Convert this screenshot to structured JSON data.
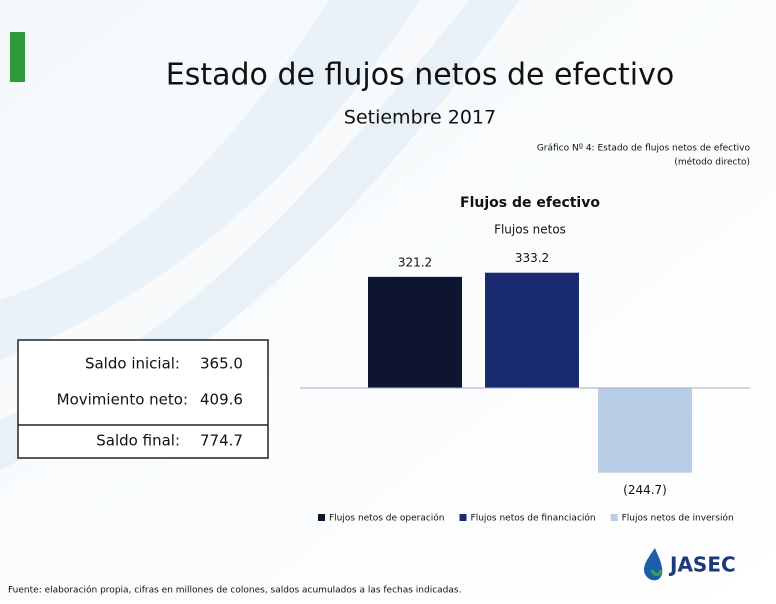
{
  "header": {
    "title": "Estado de flujos netos de efectivo",
    "subtitle": "Setiembre 2017",
    "caption": [
      "Gráfico Nº 4: Estado de flujos netos de efectivo",
      "(método directo)"
    ]
  },
  "chart_data": {
    "type": "bar",
    "title": "Flujos de efectivo",
    "subtitle": "Flujos netos",
    "series": [
      {
        "name": "Flujos netos de operación",
        "color": "#0d1530",
        "values": [
          321.2
        ]
      },
      {
        "name": "Flujos netos de financiación",
        "color": "#1a2a6e",
        "values": [
          333.2
        ]
      },
      {
        "name": "Flujos netos de inversión",
        "color": "#b8cde6",
        "values": [
          -244.7
        ],
        "value_labels": [
          "(244.7)"
        ]
      }
    ],
    "ylim": [
      -300,
      400
    ],
    "legend": "bottom"
  },
  "table": {
    "rows": [
      [
        "Saldo inicial:",
        "365.0"
      ],
      [
        "Movimiento neto:",
        "409.6"
      ],
      [
        "Saldo final:",
        "774.7"
      ]
    ]
  },
  "footer": {
    "source": "Fuente: elaboración propia, cifras en millones de colones, saldos acumulados a las fechas indicadas.",
    "logo": "JASEC"
  }
}
